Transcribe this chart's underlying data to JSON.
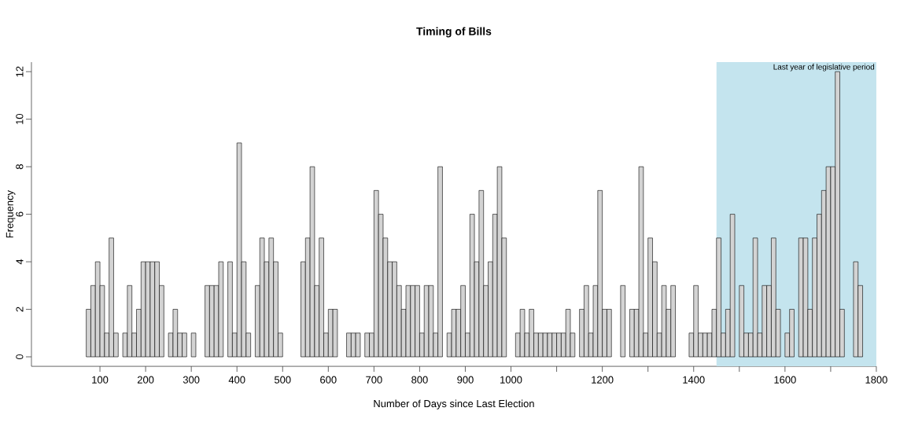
{
  "chart_data": {
    "type": "histogram",
    "title": "Timing of Bills",
    "xlabel": "Number of Days since Last Election",
    "ylabel": "Frequency",
    "bins": [
      70,
      80,
      90,
      100,
      110,
      120,
      130,
      140,
      150,
      160,
      170,
      180,
      190,
      200,
      210,
      220,
      230,
      240,
      250,
      260,
      270,
      280,
      290,
      300,
      310,
      320,
      330,
      340,
      350,
      360,
      370,
      380,
      390,
      400,
      410,
      420,
      430,
      440,
      450,
      460,
      470,
      480,
      490,
      500,
      510,
      520,
      530,
      540,
      550,
      560,
      570,
      580,
      590,
      600,
      610,
      620,
      630,
      640,
      650,
      660,
      670,
      680,
      690,
      700,
      710,
      720,
      730,
      740,
      750,
      760,
      770,
      780,
      790,
      800,
      810,
      820,
      830,
      840,
      850,
      860,
      870,
      880,
      890,
      900,
      910,
      920,
      930,
      940,
      950,
      960,
      970,
      980,
      990,
      1000,
      1010,
      1020,
      1030,
      1040,
      1050,
      1060,
      1070,
      1080,
      1090,
      1100,
      1110,
      1120,
      1130,
      1140,
      1150,
      1160,
      1170,
      1180,
      1190,
      1200,
      1210,
      1220,
      1230,
      1240,
      1250,
      1260,
      1270,
      1280,
      1290,
      1300,
      1310,
      1320,
      1330,
      1340,
      1350,
      1360,
      1370,
      1380,
      1390,
      1400,
      1410,
      1420,
      1430,
      1440,
      1450,
      1460,
      1470,
      1480,
      1490,
      1500,
      1510,
      1520,
      1530,
      1540,
      1550,
      1560,
      1570,
      1580,
      1590,
      1600,
      1610,
      1620,
      1630,
      1640,
      1650,
      1660,
      1670,
      1680,
      1690,
      1700,
      1710,
      1720,
      1730,
      1740,
      1750,
      1760,
      1770
    ],
    "values": [
      2,
      3,
      4,
      3,
      1,
      5,
      1,
      0,
      1,
      3,
      1,
      2,
      4,
      4,
      4,
      4,
      3,
      0,
      1,
      2,
      1,
      1,
      0,
      1,
      0,
      0,
      3,
      3,
      3,
      4,
      0,
      4,
      1,
      9,
      4,
      1,
      0,
      3,
      5,
      4,
      5,
      4,
      1,
      0,
      0,
      0,
      0,
      4,
      5,
      8,
      3,
      5,
      1,
      2,
      2,
      0,
      0,
      1,
      1,
      1,
      0,
      1,
      1,
      7,
      6,
      5,
      4,
      4,
      3,
      2,
      3,
      3,
      3,
      1,
      3,
      3,
      1,
      8,
      0,
      1,
      2,
      2,
      3,
      1,
      6,
      4,
      7,
      3,
      4,
      6,
      8,
      5,
      0,
      0,
      1,
      2,
      1,
      2,
      1,
      1,
      1,
      1,
      1,
      1,
      1,
      2,
      1,
      0,
      2,
      3,
      1,
      3,
      7,
      2,
      2,
      0,
      0,
      3,
      0,
      2,
      2,
      8,
      1,
      5,
      4,
      1,
      3,
      2,
      3,
      0,
      0,
      0,
      1,
      3,
      1,
      1,
      1,
      2,
      5,
      1,
      2,
      6,
      0,
      3,
      1,
      1,
      5,
      1,
      3,
      3,
      5,
      2,
      0,
      1,
      2,
      0,
      5,
      5,
      2,
      5,
      6,
      7,
      8,
      8,
      12,
      2,
      0,
      0,
      4,
      3
    ],
    "color": "#d3d3d3",
    "xlim": [
      -50,
      1800
    ],
    "ylim": [
      -0.4,
      12.4
    ],
    "xticks": [
      100,
      200,
      300,
      400,
      500,
      600,
      700,
      800,
      900,
      1000,
      {
        "value": 1100,
        "label": null
      },
      1200,
      {
        "value": 1300,
        "label": null
      },
      1400,
      {
        "value": 1500,
        "label": null
      },
      1600,
      {
        "value": 1700,
        "label": null
      },
      1800
    ],
    "yticks": [
      0,
      2,
      4,
      6,
      8,
      10,
      12
    ],
    "bands": [
      {
        "axis": "x",
        "from": 1450,
        "to": 1800,
        "label": "Last year of legislative period",
        "color": "#c4e4ee"
      }
    ]
  }
}
